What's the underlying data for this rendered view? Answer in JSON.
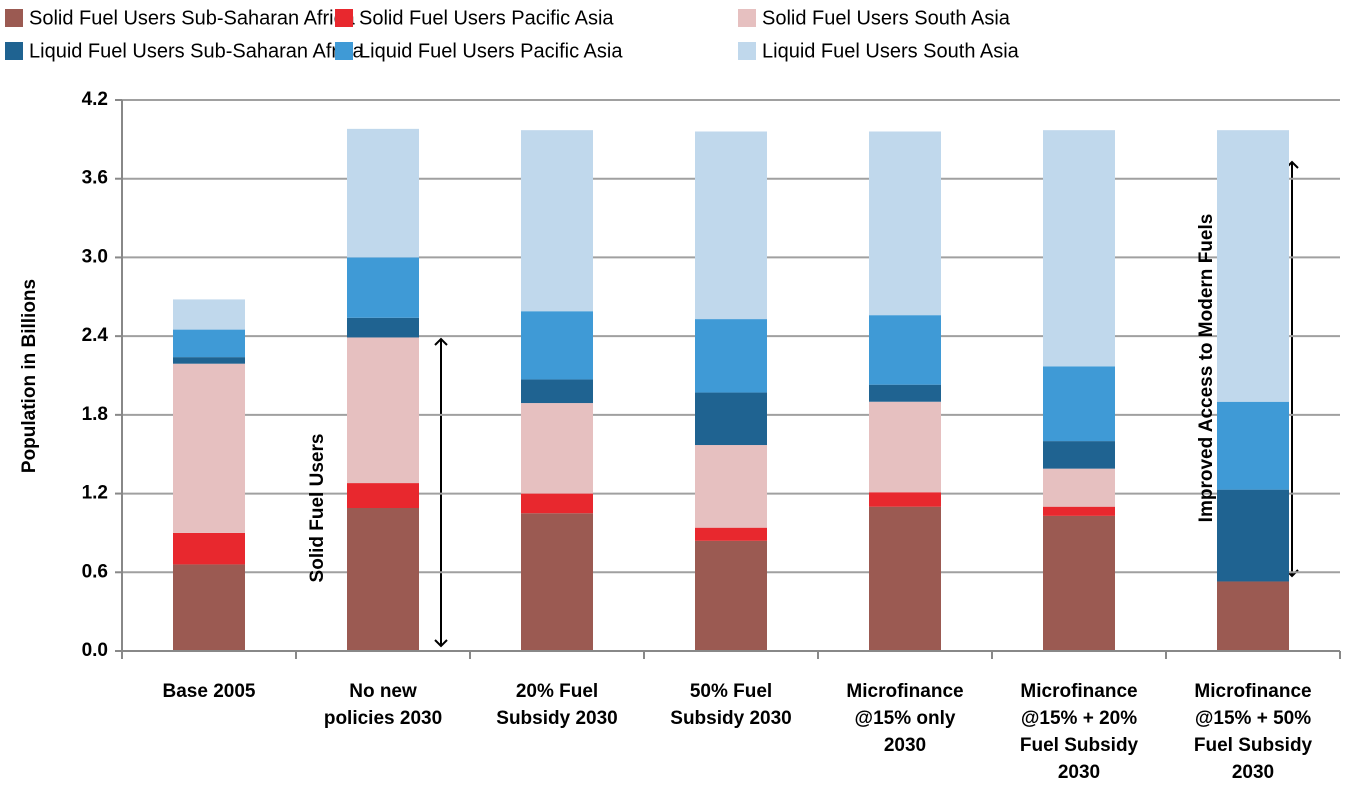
{
  "chart_data": {
    "type": "stacked_bar",
    "ylabel": "Population in Billions",
    "categories": [
      "Base 2005",
      "No new\npolicies 2030",
      "20% Fuel\nSubsidy 2030",
      "50% Fuel\nSubsidy 2030",
      "Microfinance\n@15% only\n2030",
      "Microfinance\n@15% + 20%\nFuel Subsidy\n2030",
      "Microfinance\n@15% + 50%\nFuel Subsidy\n2030"
    ],
    "series": [
      {
        "name": "Solid Fuel Users Sub-Saharan Africa",
        "color": "#9b5a52",
        "values": [
          0.66,
          1.09,
          1.05,
          0.84,
          1.1,
          1.03,
          0.53
        ]
      },
      {
        "name": "Solid Fuel Users Pacific Asia",
        "color": "#e8282e",
        "values": [
          0.24,
          0.19,
          0.15,
          0.1,
          0.11,
          0.07,
          0
        ]
      },
      {
        "name": "Solid Fuel Users South Asia",
        "color": "#e6c0c0",
        "values": [
          1.29,
          1.11,
          0.69,
          0.63,
          0.69,
          0.29,
          0
        ]
      },
      {
        "name": "Liquid Fuel Users Sub-Saharan Africa",
        "color": "#1f6391",
        "values": [
          0.05,
          0.15,
          0.18,
          0.4,
          0.13,
          0.21,
          0.7
        ]
      },
      {
        "name": "Liquid Fuel Users Pacific Asia",
        "color": "#3f9ad6",
        "values": [
          0.21,
          0.46,
          0.52,
          0.56,
          0.53,
          0.57,
          0.67
        ]
      },
      {
        "name": "Liquid Fuel Users South Asia",
        "color": "#c0d8ec",
        "values": [
          0.23,
          0.98,
          1.38,
          1.43,
          1.4,
          1.8,
          2.07
        ]
      }
    ],
    "annotations": [
      "Solid Fuel Users",
      "Improved Access  to Modern Fuels"
    ],
    "ylim": [
      0,
      4.2
    ],
    "yticks": [
      {
        "value": 0,
        "label": "0.0"
      },
      0.6,
      1.2,
      1.8,
      2.4,
      {
        "value": 3,
        "label": "3.0"
      },
      3.6,
      4.2
    ],
    "grid": true
  }
}
